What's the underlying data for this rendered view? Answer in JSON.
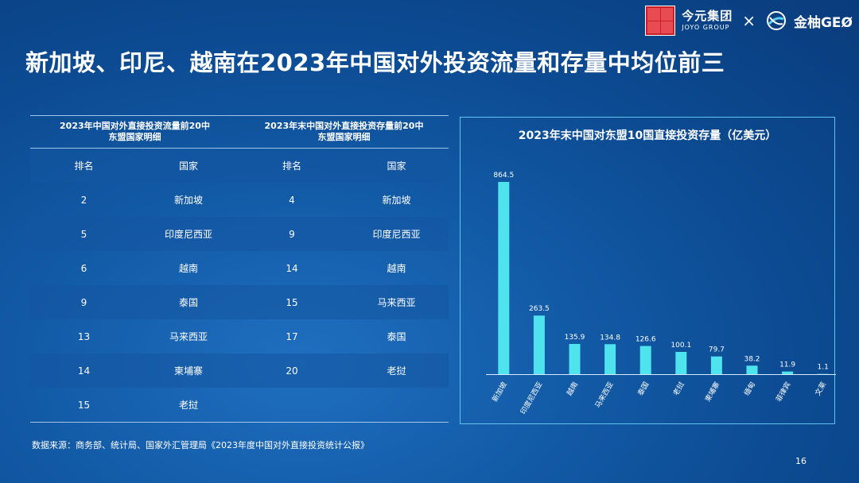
{
  "brand": {
    "company_cn": "今元集团",
    "company_en": "JOYO GROUP",
    "times": "×",
    "partner": "金柚GEØ"
  },
  "title": "新加坡、印尼、越南在2023年中国对外投资流量和存量中均位前三",
  "table": {
    "header_left": "2023年中国对外直接投资流量前20中\n东盟国家明细",
    "header_right": "2023年末中国对外直接投资存量前20中\n东盟国家明细",
    "col_headers": [
      "排名",
      "国家",
      "排名",
      "国家"
    ],
    "rows": [
      [
        "2",
        "新加坡",
        "4",
        "新加坡"
      ],
      [
        "5",
        "印度尼西亚",
        "9",
        "印度尼西亚"
      ],
      [
        "6",
        "越南",
        "14",
        "越南"
      ],
      [
        "9",
        "泰国",
        "15",
        "马来西亚"
      ],
      [
        "13",
        "马来西亚",
        "17",
        "泰国"
      ],
      [
        "14",
        "柬埔寨",
        "20",
        "老挝"
      ],
      [
        "15",
        "老挝",
        "",
        ""
      ]
    ]
  },
  "chart_data": {
    "type": "bar",
    "title": "2023年末中国对东盟10国直接投资存量（亿美元）",
    "categories": [
      "新加坡",
      "印度尼西亚",
      "越南",
      "马来西亚",
      "泰国",
      "老挝",
      "柬埔寨",
      "缅甸",
      "菲律宾",
      "文莱"
    ],
    "values": [
      864.5,
      263.5,
      135.9,
      134.8,
      126.6,
      100.1,
      79.7,
      38.2,
      11.9,
      1.1
    ],
    "value_labels": [
      "864.5",
      "263.5",
      "135.9",
      "134.8",
      "126.6",
      "100.1",
      "79.7",
      "38.2",
      "11.9",
      "1.1"
    ],
    "bar_color": "#4fe3ee",
    "ylim": [
      0,
      864.5
    ],
    "grid": false,
    "xlabel": "",
    "ylabel": ""
  },
  "source": "数据来源：商务部、统计局、国家外汇管理局《2023年度中国对外直接投资统计公报》",
  "page_number": "16"
}
